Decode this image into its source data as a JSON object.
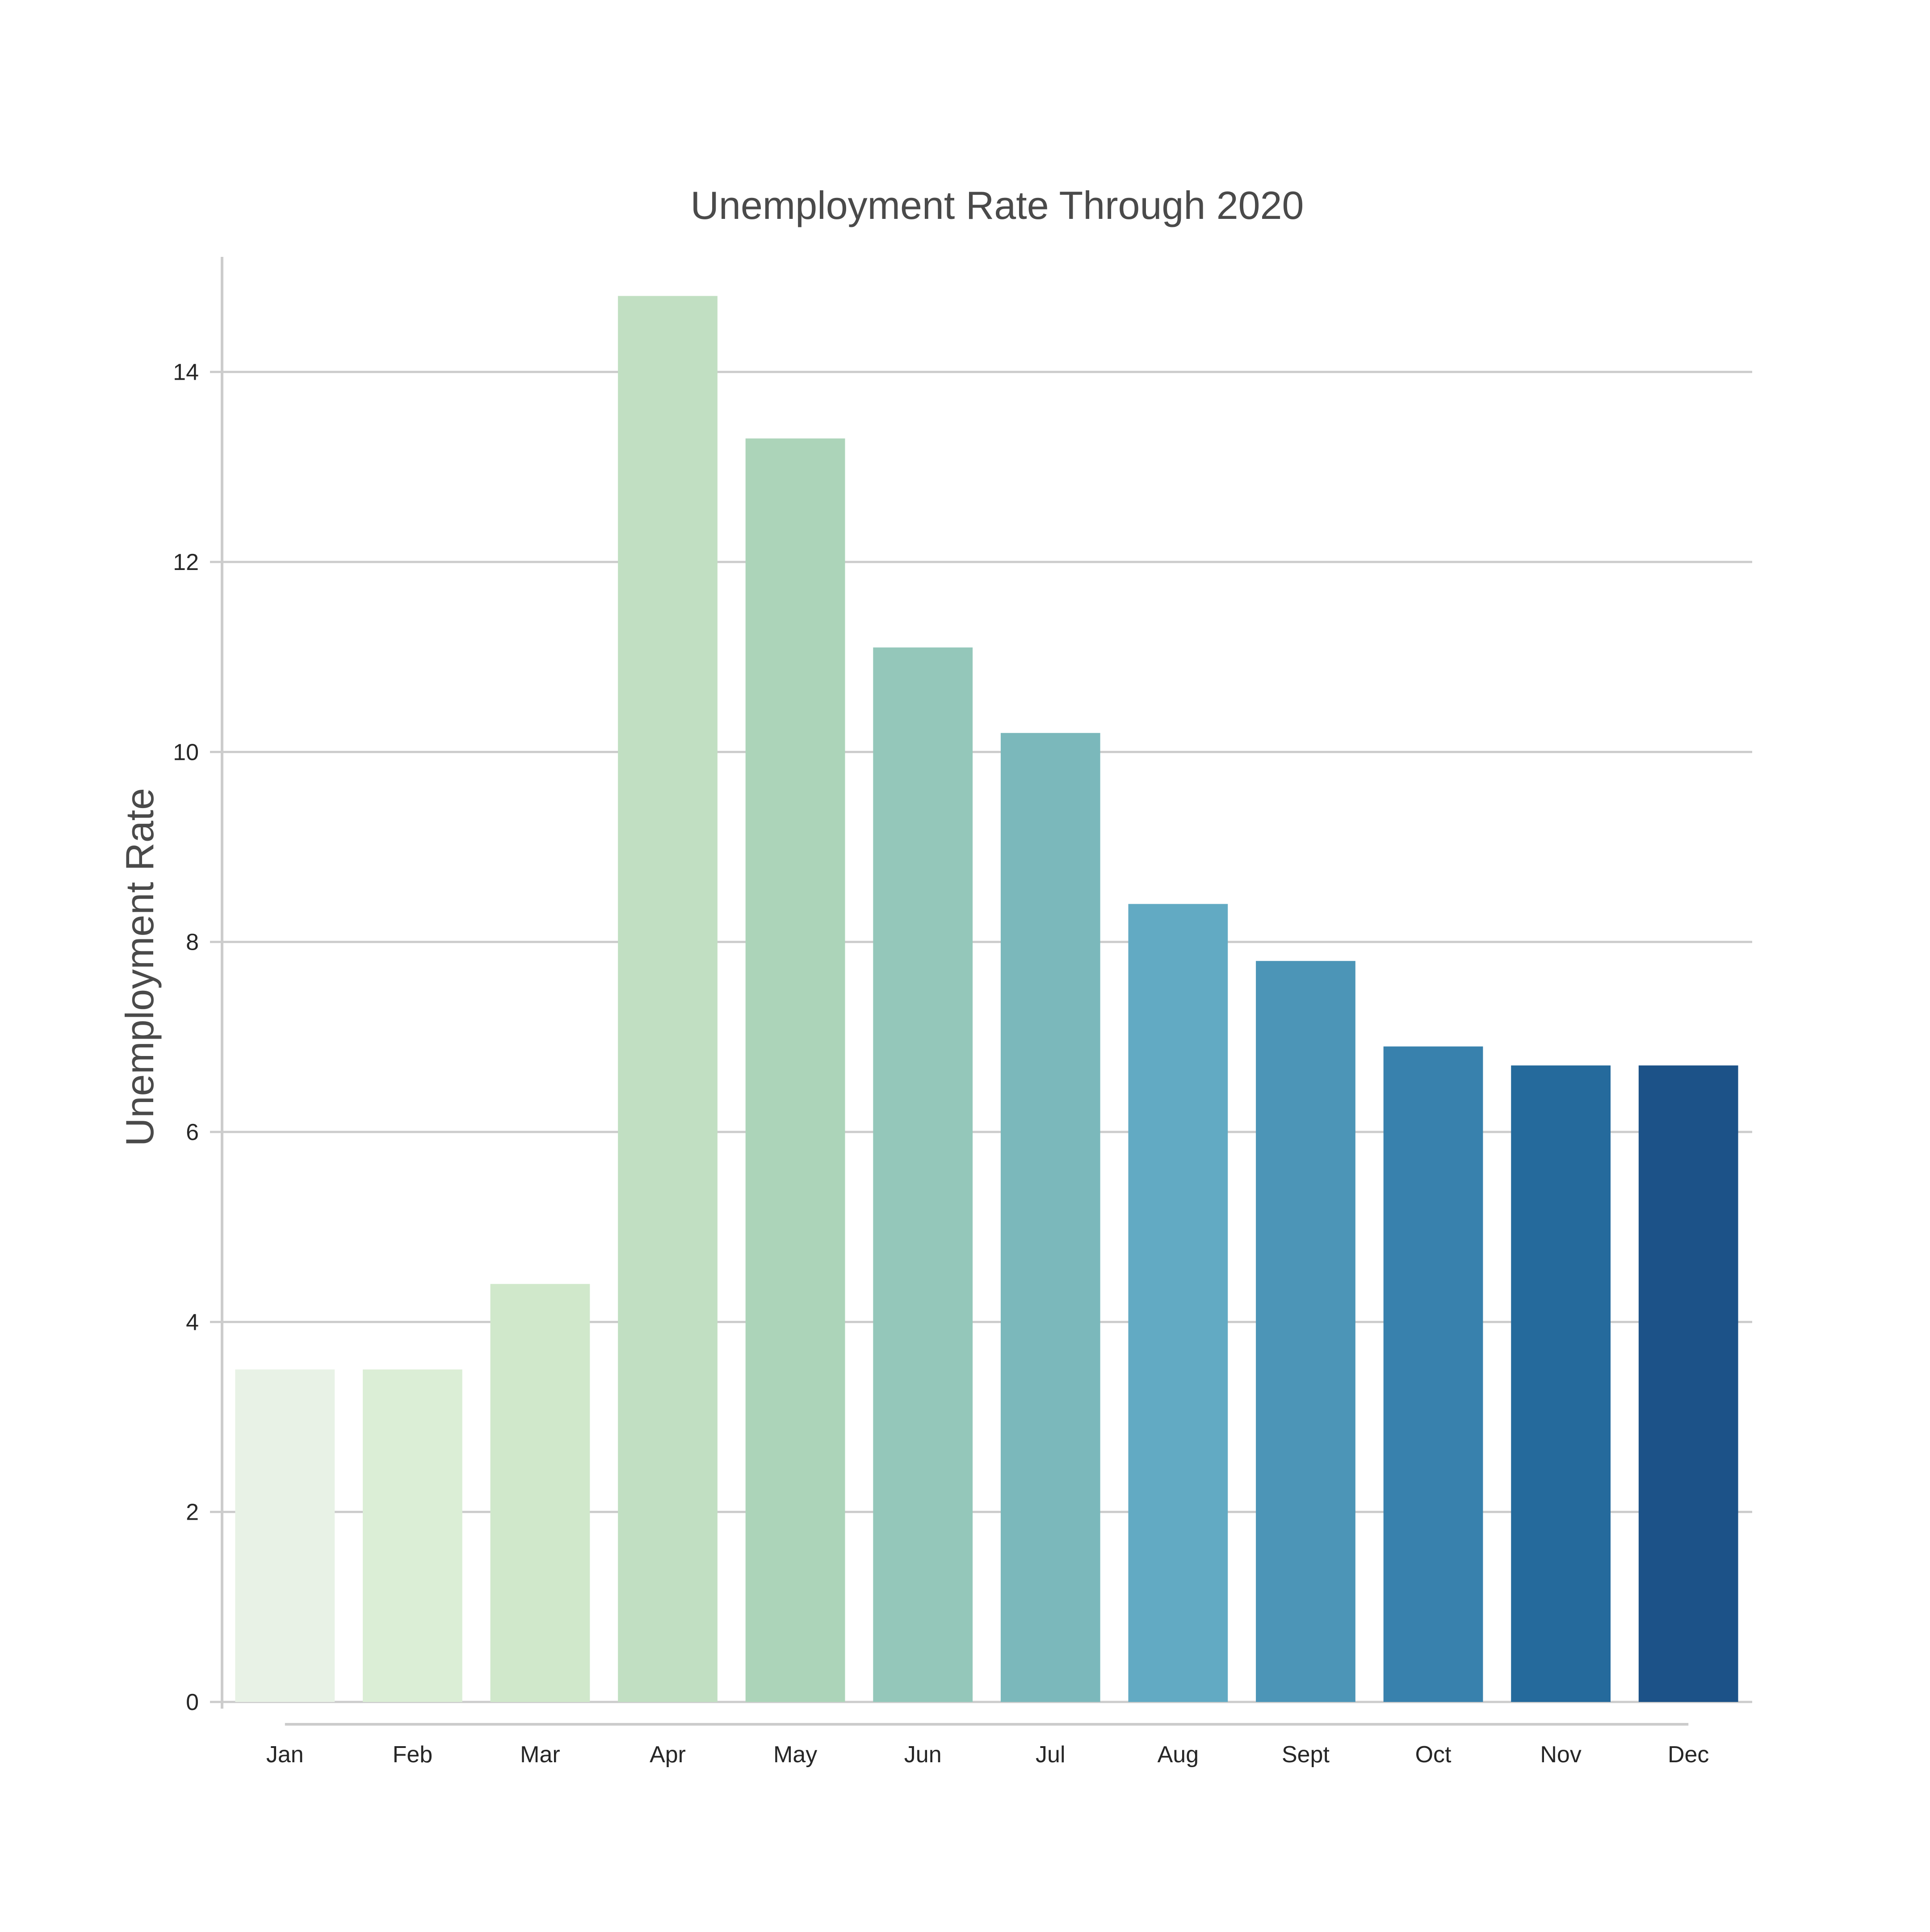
{
  "chart_data": {
    "type": "bar",
    "title": "Unemployment Rate Through 2020",
    "xlabel": "",
    "ylabel": "Unemployment Rate",
    "categories": [
      "Jan",
      "Feb",
      "Mar",
      "Apr",
      "May",
      "Jun",
      "Jul",
      "Aug",
      "Sept",
      "Oct",
      "Nov",
      "Dec"
    ],
    "values": [
      3.5,
      3.5,
      4.4,
      14.8,
      13.3,
      11.1,
      10.2,
      8.4,
      7.8,
      6.9,
      6.7,
      6.7
    ],
    "colors": [
      "#e8f2e6",
      "#dbeed6",
      "#d0e8cb",
      "#c1dfc2",
      "#acd4b9",
      "#94c7ba",
      "#7bb8bb",
      "#62aac3",
      "#4c95b7",
      "#3881ad",
      "#256a9c",
      "#1c5288"
    ],
    "ylim": [
      0,
      15
    ],
    "yticks": [
      0,
      2,
      4,
      6,
      8,
      10,
      12,
      14
    ],
    "grid": true,
    "legend": "none"
  }
}
